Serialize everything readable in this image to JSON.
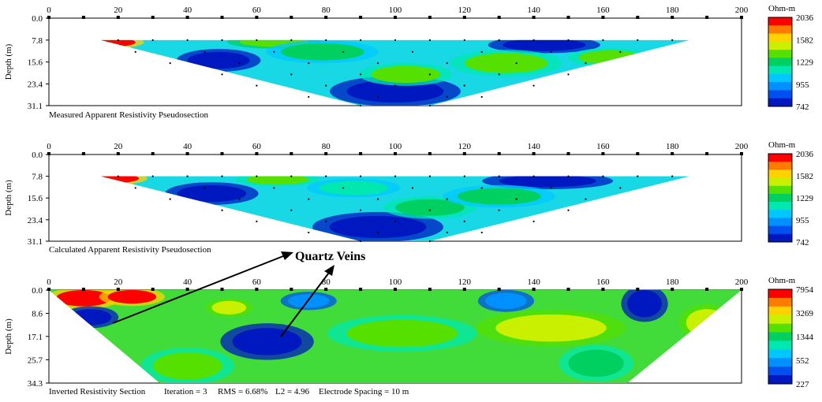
{
  "chart_data": [
    {
      "type": "heatmap",
      "title": "Measured Apparent Resistivity Pseudosection",
      "xlabel": "",
      "ylabel": "Depth (m)",
      "xlim": [
        0,
        200
      ],
      "x_ticks": [
        "0",
        "20",
        "40",
        "60",
        "80",
        "100",
        "120",
        "140",
        "160",
        "180",
        "200"
      ],
      "y_ticks": [
        "0.0",
        "7.8",
        "15.6",
        "23.4",
        "31.1"
      ],
      "ylim": [
        0,
        31.1
      ],
      "profile": [
        [
          15,
          7.8
        ],
        [
          185,
          7.8
        ],
        [
          110,
          31.1
        ],
        [
          90,
          31.1
        ]
      ],
      "colorbar": {
        "unit": "Ohm-m",
        "ticks": [
          "2036",
          "1582",
          "1229",
          "955",
          "742"
        ],
        "colors": [
          "#ff0000",
          "#ff7a00",
          "#ffd200",
          "#c8f000",
          "#55e000",
          "#00d060",
          "#00e8b0",
          "#00c8ff",
          "#0090ff",
          "#0050f0",
          "#0018c0"
        ]
      },
      "anomalies": [
        {
          "x": 18,
          "y": 8.6,
          "rx": 7,
          "ry": 1.6,
          "value": 2036
        },
        {
          "x": 49,
          "y": 15,
          "rx": 9,
          "ry": 3,
          "value": 742
        },
        {
          "x": 65,
          "y": 8.4,
          "rx": 10,
          "ry": 1.8,
          "value": 1400
        },
        {
          "x": 79,
          "y": 12,
          "rx": 12,
          "ry": 3,
          "value": 1200
        },
        {
          "x": 100,
          "y": 26,
          "rx": 14,
          "ry": 4,
          "value": 742
        },
        {
          "x": 103,
          "y": 20,
          "rx": 10,
          "ry": 3,
          "value": 1300
        },
        {
          "x": 143,
          "y": 9.5,
          "rx": 12,
          "ry": 2.2,
          "value": 742
        },
        {
          "x": 132,
          "y": 16,
          "rx": 12,
          "ry": 3.5,
          "value": 1300
        },
        {
          "x": 162,
          "y": 14,
          "rx": 9,
          "ry": 2.5,
          "value": 1300
        }
      ],
      "measurement_points": [
        [
          20,
          7.8
        ],
        [
          30,
          7.8
        ],
        [
          40,
          7.8
        ],
        [
          50,
          7.8
        ],
        [
          60,
          7.8
        ],
        [
          70,
          7.8
        ],
        [
          80,
          7.8
        ],
        [
          90,
          7.8
        ],
        [
          100,
          7.8
        ],
        [
          110,
          7.8
        ],
        [
          120,
          7.8
        ],
        [
          130,
          7.8
        ],
        [
          140,
          7.8
        ],
        [
          150,
          7.8
        ],
        [
          160,
          7.8
        ],
        [
          170,
          7.8
        ],
        [
          180,
          7.8
        ],
        [
          25,
          12
        ],
        [
          45,
          12
        ],
        [
          65,
          12
        ],
        [
          85,
          12
        ],
        [
          105,
          12
        ],
        [
          125,
          12
        ],
        [
          145,
          12
        ],
        [
          165,
          12
        ],
        [
          35,
          16
        ],
        [
          55,
          16
        ],
        [
          75,
          16
        ],
        [
          95,
          16
        ],
        [
          115,
          16
        ],
        [
          135,
          16
        ],
        [
          155,
          16
        ],
        [
          50,
          20
        ],
        [
          70,
          20
        ],
        [
          90,
          20
        ],
        [
          110,
          20
        ],
        [
          130,
          20
        ],
        [
          150,
          20
        ],
        [
          60,
          24
        ],
        [
          80,
          24
        ],
        [
          100,
          24
        ],
        [
          120,
          24
        ],
        [
          140,
          24
        ],
        [
          75,
          28
        ],
        [
          95,
          28
        ],
        [
          115,
          28
        ],
        [
          125,
          28
        ],
        [
          90,
          31.1
        ],
        [
          110,
          31.1
        ]
      ]
    },
    {
      "type": "heatmap",
      "title": "Calculated Apparent Resistivity Pseudosection",
      "xlabel": "",
      "ylabel": "Depth (m)",
      "xlim": [
        0,
        200
      ],
      "x_ticks": [
        "0",
        "20",
        "40",
        "60",
        "80",
        "100",
        "120",
        "140",
        "160",
        "180",
        "200"
      ],
      "y_ticks": [
        "0.0",
        "7.8",
        "15.6",
        "23.4",
        "31.1"
      ],
      "ylim": [
        0,
        31.1
      ],
      "profile": [
        [
          15,
          7.8
        ],
        [
          185,
          7.8
        ],
        [
          110,
          31.1
        ],
        [
          90,
          31.1
        ]
      ],
      "colorbar": {
        "unit": "Ohm-m",
        "ticks": [
          "2036",
          "1582",
          "1229",
          "955",
          "742"
        ],
        "colors": [
          "#ff0000",
          "#ff7a00",
          "#ffd200",
          "#c8f000",
          "#55e000",
          "#00d060",
          "#00e8b0",
          "#00c8ff",
          "#0090ff",
          "#0050f0",
          "#0018c0"
        ]
      },
      "anomalies": [
        {
          "x": 19,
          "y": 8.6,
          "rx": 7,
          "ry": 1.6,
          "value": 2036
        },
        {
          "x": 47,
          "y": 14,
          "rx": 10,
          "ry": 3,
          "value": 742
        },
        {
          "x": 66,
          "y": 9,
          "rx": 9,
          "ry": 1.8,
          "value": 1300
        },
        {
          "x": 95,
          "y": 26,
          "rx": 14,
          "ry": 4,
          "value": 742
        },
        {
          "x": 110,
          "y": 19,
          "rx": 10,
          "ry": 3,
          "value": 1250
        },
        {
          "x": 144,
          "y": 9.5,
          "rx": 14,
          "ry": 2.2,
          "value": 742
        },
        {
          "x": 130,
          "y": 15,
          "rx": 12,
          "ry": 3,
          "value": 1200
        },
        {
          "x": 88,
          "y": 12,
          "rx": 10,
          "ry": 2.5,
          "value": 1150
        }
      ],
      "measurement_points": [
        [
          20,
          7.8
        ],
        [
          30,
          7.8
        ],
        [
          40,
          7.8
        ],
        [
          50,
          7.8
        ],
        [
          60,
          7.8
        ],
        [
          70,
          7.8
        ],
        [
          80,
          7.8
        ],
        [
          90,
          7.8
        ],
        [
          100,
          7.8
        ],
        [
          110,
          7.8
        ],
        [
          120,
          7.8
        ],
        [
          130,
          7.8
        ],
        [
          140,
          7.8
        ],
        [
          150,
          7.8
        ],
        [
          160,
          7.8
        ],
        [
          170,
          7.8
        ],
        [
          180,
          7.8
        ],
        [
          25,
          12
        ],
        [
          45,
          12
        ],
        [
          65,
          12
        ],
        [
          85,
          12
        ],
        [
          105,
          12
        ],
        [
          125,
          12
        ],
        [
          145,
          12
        ],
        [
          165,
          12
        ],
        [
          35,
          16
        ],
        [
          55,
          16
        ],
        [
          75,
          16
        ],
        [
          95,
          16
        ],
        [
          115,
          16
        ],
        [
          135,
          16
        ],
        [
          155,
          16
        ],
        [
          50,
          20
        ],
        [
          70,
          20
        ],
        [
          90,
          20
        ],
        [
          110,
          20
        ],
        [
          130,
          20
        ],
        [
          150,
          20
        ],
        [
          60,
          24
        ],
        [
          80,
          24
        ],
        [
          100,
          24
        ],
        [
          120,
          24
        ],
        [
          140,
          24
        ],
        [
          75,
          28
        ],
        [
          95,
          28
        ],
        [
          115,
          28
        ],
        [
          125,
          28
        ],
        [
          90,
          31.1
        ],
        [
          110,
          31.1
        ]
      ]
    },
    {
      "type": "heatmap",
      "title": "Inverted Resistivity Section",
      "caption": [
        "Iteration = 3",
        "RMS = 6.68%",
        "L2 = 4.96",
        "Electrode Spacing = 10 m"
      ],
      "xlabel": "",
      "ylabel": "Depth (m)",
      "xlim": [
        0,
        200
      ],
      "x_ticks": [
        "0",
        "20",
        "40",
        "60",
        "80",
        "100",
        "120",
        "140",
        "160",
        "180",
        "200"
      ],
      "y_ticks": [
        "0.0",
        "8.6",
        "17.1",
        "25.7",
        "34.3"
      ],
      "ylim": [
        0,
        34.3
      ],
      "profile": [
        [
          0,
          0
        ],
        [
          200,
          0
        ],
        [
          167,
          34.3
        ],
        [
          32,
          34.3
        ]
      ],
      "colorbar": {
        "unit": "Ohm-m",
        "ticks": [
          "7954",
          "3269",
          "1344",
          "552",
          "227"
        ],
        "colors": [
          "#ff0000",
          "#ff7a00",
          "#ffd200",
          "#c8f000",
          "#55e000",
          "#00d060",
          "#00e8b0",
          "#00c8ff",
          "#0090ff",
          "#0050f0",
          "#0018c0"
        ]
      },
      "anomalies": [
        {
          "x": 10,
          "y": 3,
          "rx": 8,
          "ry": 3,
          "value": 7954
        },
        {
          "x": 24,
          "y": 2.5,
          "rx": 7,
          "ry": 2.5,
          "value": 7954
        },
        {
          "x": 12,
          "y": 10,
          "rx": 6,
          "ry": 3,
          "value": 227
        },
        {
          "x": 52,
          "y": 6.5,
          "rx": 5,
          "ry": 2.5,
          "value": 3269
        },
        {
          "x": 63,
          "y": 19,
          "rx": 10,
          "ry": 5,
          "value": 227
        },
        {
          "x": 40,
          "y": 28,
          "rx": 10,
          "ry": 5,
          "value": 1800
        },
        {
          "x": 102,
          "y": 16,
          "rx": 16,
          "ry": 5,
          "value": 1800
        },
        {
          "x": 145,
          "y": 14,
          "rx": 16,
          "ry": 5,
          "value": 3269
        },
        {
          "x": 172,
          "y": 5,
          "rx": 5,
          "ry": 5,
          "value": 227
        },
        {
          "x": 190,
          "y": 12,
          "rx": 6,
          "ry": 5,
          "value": 3269
        },
        {
          "x": 132,
          "y": 4,
          "rx": 6,
          "ry": 3,
          "value": 552
        },
        {
          "x": 75,
          "y": 4,
          "rx": 6,
          "ry": 2.5,
          "value": 552
        },
        {
          "x": 158,
          "y": 27,
          "rx": 8,
          "ry": 5,
          "value": 1500
        }
      ]
    }
  ],
  "annotations": {
    "label": "Quartz Veins"
  }
}
